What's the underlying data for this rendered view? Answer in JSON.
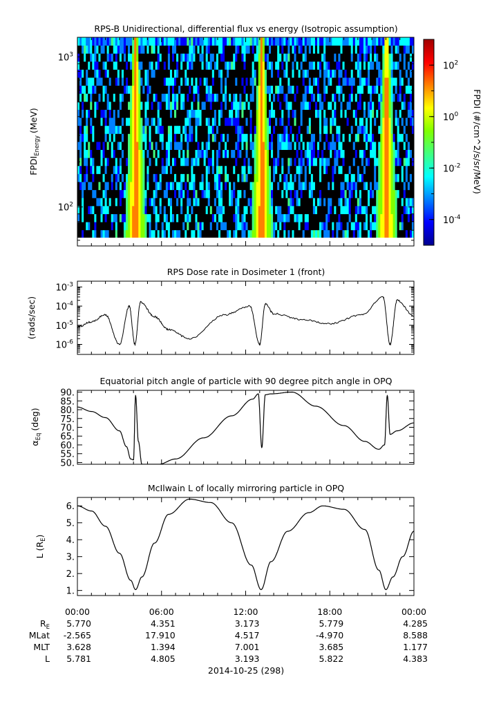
{
  "chart_data": [
    {
      "type": "heatmap",
      "title": "RPS-B  Unidirectional, differential flux vs energy (Isotropic assumption)",
      "ylabel_main": "FPDI",
      "ylabel_sub": "Energy",
      "ylabel_unit": "(MeV)",
      "yscale": "log",
      "ylim": [
        55,
        1350
      ],
      "y_ticks": [
        {
          "value": 100,
          "base": "10",
          "exp": "2"
        },
        {
          "value": 1000,
          "base": "10",
          "exp": "3"
        }
      ],
      "xlim_hours": [
        0,
        24
      ],
      "colorbar": {
        "label": "FPDI (#/cm^2/s/sr/MeV)",
        "scale": "log",
        "range": [
          -5,
          3
        ],
        "ticks": [
          {
            "exp": -4,
            "text": "-4"
          },
          {
            "exp": -2,
            "text": "-2"
          },
          {
            "exp": 0,
            "text": "0"
          },
          {
            "exp": 2,
            "text": "2"
          }
        ],
        "colors": [
          "#00008f",
          "#0000ff",
          "#0080ff",
          "#00ffff",
          "#40ff80",
          "#80ff00",
          "#ffff00",
          "#ff8000",
          "#ff0000",
          "#a00000"
        ]
      },
      "belt_crossings_hours": [
        4.15,
        13.15,
        22.05
      ]
    },
    {
      "type": "line",
      "title": "RPS  Dose rate in Dosimeter 1 (front)",
      "ylabel": "(rads/sec)",
      "yscale": "log",
      "ylim": [
        3e-07,
        0.002
      ],
      "y_ticks": [
        {
          "value": 1e-06,
          "exp": "-6"
        },
        {
          "value": 1e-05,
          "exp": "-5"
        },
        {
          "value": 0.0001,
          "exp": "-4"
        },
        {
          "value": 0.001,
          "exp": "-3"
        }
      ],
      "x_hours": [
        0,
        1.0,
        2.0,
        3.0,
        3.7,
        4.1,
        4.5,
        5.5,
        6.5,
        8.0,
        10.5,
        12.3,
        13.0,
        13.4,
        14.0,
        16.0,
        18.0,
        20.3,
        21.8,
        22.3,
        22.8,
        24.0
      ],
      "y": [
        8e-06,
        1.5e-05,
        3.5e-05,
        1e-06,
        0.0001,
        1e-06,
        0.00016,
        2.8e-05,
        6e-06,
        2e-06,
        3.5e-05,
        0.0001,
        1e-06,
        0.00013,
        4e-05,
        2e-05,
        1.2e-05,
        3.5e-05,
        0.0003,
        1e-06,
        0.0002,
        3e-05
      ]
    },
    {
      "type": "line",
      "title": "Equatorial pitch angle of particle with 90 degree pitch angle in OPQ",
      "ylabel": "(deg)",
      "ylim": [
        49,
        91
      ],
      "y_ticks": [
        50,
        55,
        60,
        65,
        70,
        75,
        80,
        85,
        90
      ],
      "y_tick_labels": [
        "50.",
        "55.",
        "60.",
        "65.",
        "70.",
        "75.",
        "80.",
        "85.",
        "90."
      ],
      "x_hours": [
        0,
        1.0,
        2.0,
        3.0,
        3.5,
        3.8,
        4.0,
        4.15,
        4.35,
        4.6,
        5.8,
        7.0,
        9.0,
        11.0,
        12.5,
        12.9,
        13.15,
        13.4,
        13.8,
        15.3,
        17.0,
        19.0,
        20.5,
        21.5,
        21.9,
        22.1,
        22.3,
        22.8,
        24.0
      ],
      "y": [
        81.5,
        79,
        75.5,
        68,
        59,
        52,
        51.5,
        88,
        62,
        49,
        49,
        52,
        64,
        76.5,
        86,
        89,
        58.5,
        88.5,
        89,
        90,
        82,
        71,
        62,
        57.5,
        60,
        88,
        66,
        68,
        72.5
      ]
    },
    {
      "type": "line",
      "title": "McIlwain L of locally mirroring particle in OPQ",
      "ylabel_main": "L (R",
      "ylabel_sub": "E",
      "ylabel_end": ")",
      "ylim": [
        0.7,
        6.5
      ],
      "y_ticks": [
        1,
        2,
        3,
        4,
        5,
        6
      ],
      "y_tick_labels": [
        "1.",
        "2.",
        "3.",
        "4.",
        "5.",
        "6."
      ],
      "x_hours": [
        0,
        1.0,
        2.0,
        3.0,
        3.8,
        4.15,
        4.6,
        5.5,
        6.5,
        8.0,
        9.5,
        11.0,
        12.4,
        13.1,
        13.8,
        15.0,
        16.5,
        17.5,
        19.0,
        20.5,
        21.5,
        22.0,
        22.5,
        23.2,
        24.0
      ],
      "y": [
        6.0,
        5.7,
        4.8,
        3.2,
        1.6,
        1.05,
        1.8,
        3.8,
        5.5,
        6.4,
        6.2,
        5.0,
        2.5,
        1.05,
        2.7,
        4.5,
        5.6,
        6.0,
        5.8,
        4.6,
        2.2,
        1.05,
        1.8,
        3.0,
        4.5
      ]
    }
  ],
  "time_axis": {
    "tick_labels": [
      "00:00",
      "06:00",
      "12:00",
      "18:00",
      "00:00"
    ],
    "ephemeris": [
      {
        "name": "RE",
        "label_main": "R",
        "label_sub": "E",
        "values": [
          "5.770",
          "4.351",
          "3.173",
          "5.779",
          "4.285"
        ]
      },
      {
        "name": "MLat",
        "label_main": "MLat",
        "label_sub": "",
        "values": [
          "-2.565",
          "17.910",
          "4.517",
          "-4.970",
          "8.588"
        ]
      },
      {
        "name": "MLT",
        "label_main": "MLT",
        "label_sub": "",
        "values": [
          "3.628",
          "1.394",
          "7.001",
          "3.685",
          "1.177"
        ]
      },
      {
        "name": "L",
        "label_main": "L",
        "label_sub": "",
        "values": [
          "5.781",
          "4.805",
          "3.193",
          "5.822",
          "4.383"
        ]
      }
    ],
    "date_label": "2014-10-25 (298)"
  }
}
